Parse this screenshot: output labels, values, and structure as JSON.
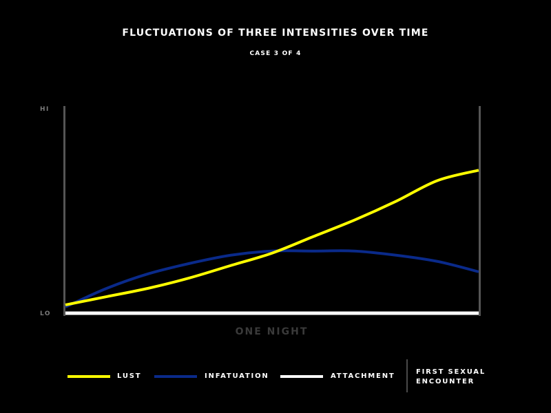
{
  "header": {
    "title": "FLUCTUATIONS OF THREE INTENSITIES OVER TIME",
    "subtitle": "CASE 3 OF 4"
  },
  "axis": {
    "y_hi": "HI",
    "y_lo": "LO",
    "x_label": "ONE NIGHT"
  },
  "legend": {
    "items": [
      {
        "label": "LUST",
        "color": "#ffff00"
      },
      {
        "label": "INFATUATION",
        "color": "#0a2a8a"
      },
      {
        "label": "ATTACHMENT",
        "color": "#ffffff"
      }
    ],
    "note": "FIRST SEXUAL ENCOUNTER"
  },
  "chart_data": {
    "type": "line",
    "title": "FLUCTUATIONS OF THREE INTENSITIES OVER TIME",
    "subtitle": "CASE 3 OF 4",
    "xlabel": "ONE NIGHT",
    "ylabel": "",
    "x": [
      0,
      0.1,
      0.2,
      0.3,
      0.4,
      0.5,
      0.6,
      0.7,
      0.8,
      0.9,
      1.0
    ],
    "xlim": [
      0,
      1
    ],
    "ylim": [
      0,
      1
    ],
    "y_ticks": [
      "LO",
      "HI"
    ],
    "grid": false,
    "legend_position": "bottom",
    "series": [
      {
        "name": "LUST",
        "color": "#ffff00",
        "values": [
          0.04,
          0.08,
          0.12,
          0.17,
          0.23,
          0.29,
          0.37,
          0.45,
          0.54,
          0.64,
          0.69
        ]
      },
      {
        "name": "INFATUATION",
        "color": "#0a2a8a",
        "values": [
          0.03,
          0.12,
          0.19,
          0.24,
          0.28,
          0.3,
          0.3,
          0.3,
          0.28,
          0.25,
          0.2
        ]
      },
      {
        "name": "ATTACHMENT",
        "color": "#ffffff",
        "values": [
          0.0,
          0.0,
          0.0,
          0.0,
          0.0,
          0.0,
          0.0,
          0.0,
          0.0,
          0.0,
          0.0
        ]
      }
    ]
  }
}
